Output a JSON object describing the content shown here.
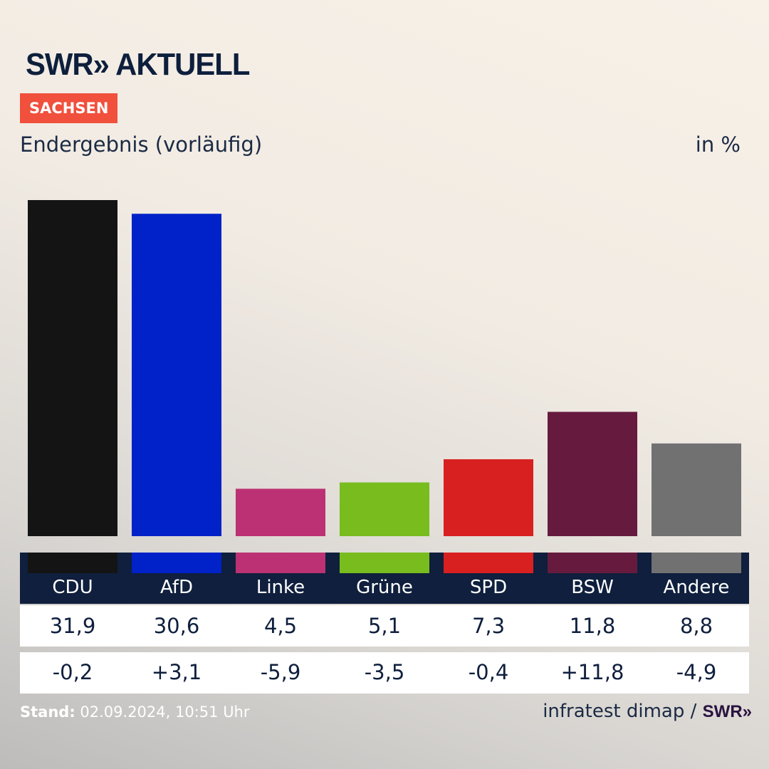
{
  "header": {
    "logo": "SWR» AKTUELL",
    "region_badge": "SACHSEN",
    "subtitle": "Endergebnis (vorläufig)",
    "unit": "in %"
  },
  "chart_data": {
    "type": "bar",
    "categories": [
      "CDU",
      "AfD",
      "Linke",
      "Grüne",
      "SPD",
      "BSW",
      "Andere"
    ],
    "values": [
      31.9,
      30.6,
      4.5,
      5.1,
      7.3,
      11.8,
      8.8
    ],
    "value_labels": [
      "31,9",
      "30,6",
      "4,5",
      "5,1",
      "7,3",
      "11,8",
      "8,8"
    ],
    "change_labels": [
      "-0,2",
      "+3,1",
      "-5,9",
      "-3,5",
      "-0,4",
      "+11,8",
      "-4,9"
    ],
    "colors": [
      "#141414",
      "#0022c8",
      "#bc3173",
      "#78bc1e",
      "#d82020",
      "#661a3e",
      "#717172"
    ],
    "ylim": [
      0,
      31.9
    ],
    "grid": false
  },
  "footer": {
    "stand_label": "Stand:",
    "stand_value": "02.09.2024, 10:51 Uhr",
    "source": "infratest dimap /",
    "source_logo": "SWR»"
  }
}
